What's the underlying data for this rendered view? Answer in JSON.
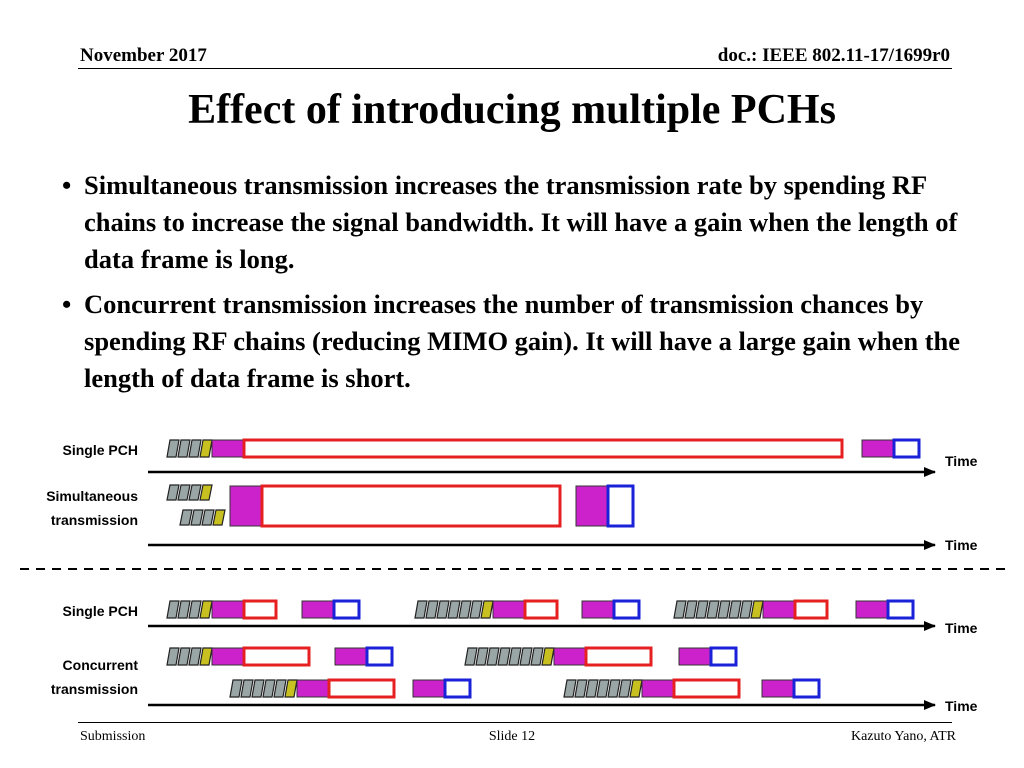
{
  "header": {
    "date": "November 2017",
    "doc": "doc.: IEEE 802.11-17/1699r0"
  },
  "title": "Effect of introducing multiple PCHs",
  "bullets": [
    "Simultaneous transmission increases the transmission rate by spending RF chains to increase the signal bandwidth.  It will have a gain when the length of data frame is long.",
    "Concurrent transmission increases the number of transmission chances by spending RF chains (reducing MIMO gain). It will have a large gain when the length of data frame is short."
  ],
  "diagram": {
    "labels": {
      "single_pch_top": "Single PCH",
      "simultaneous_1": "Simultaneous",
      "simultaneous_2": "transmission",
      "single_pch_bottom": "Single PCH",
      "concurrent_1": "Concurrent",
      "concurrent_2": "transmission"
    },
    "axis_label": "Time",
    "colors": {
      "gray_block": "#9aa6a6",
      "yellow_block": "#c8c020",
      "magenta_block": "#cc22cc",
      "red_outline": "#e62020",
      "blue_outline": "#1a22d8"
    }
  },
  "footer": {
    "left": "Submission",
    "center": "Slide 12",
    "right": "Kazuto Yano, ATR"
  }
}
